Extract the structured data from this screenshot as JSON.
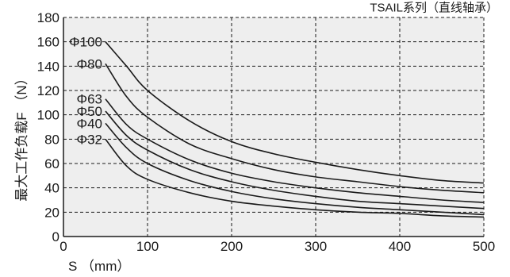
{
  "chart_data": {
    "type": "line",
    "title": "TSAIL系列（直线轴承）",
    "xlabel": "S （mm）",
    "ylabel": "最大工作负载F （N）",
    "xlim": [
      0,
      500
    ],
    "ylim": [
      0,
      180
    ],
    "x_ticks": [
      "0",
      "100",
      "200",
      "300",
      "400",
      "500"
    ],
    "y_ticks": [
      "0",
      "20",
      "40",
      "60",
      "80",
      "100",
      "120",
      "140",
      "160",
      "180"
    ],
    "grid": true,
    "grid_style": "dashed",
    "plot_background": "#eeeeee",
    "line_color": "#1a1a1a",
    "series": [
      {
        "name": "Φ100",
        "x": [
          50,
          75,
          100,
          150,
          200,
          250,
          300,
          350,
          400,
          450,
          500
        ],
        "y": [
          160,
          140,
          120,
          95,
          78,
          68,
          61,
          55,
          50,
          46,
          44
        ]
      },
      {
        "name": "Φ80",
        "x": [
          50,
          75,
          100,
          150,
          200,
          250,
          300,
          350,
          400,
          450,
          500
        ],
        "y": [
          142,
          115,
          98,
          76,
          64,
          55,
          49,
          45,
          41,
          38,
          36
        ]
      },
      {
        "name": "Φ63",
        "x": [
          50,
          75,
          100,
          150,
          200,
          250,
          300,
          350,
          400,
          450,
          500
        ],
        "y": [
          113,
          92,
          80,
          63,
          52,
          45,
          40,
          36,
          33,
          30,
          28
        ]
      },
      {
        "name": "Φ50",
        "x": [
          50,
          75,
          100,
          150,
          200,
          250,
          300,
          350,
          400,
          450,
          500
        ],
        "y": [
          103,
          83,
          71,
          55,
          45,
          38,
          33,
          29,
          27,
          25,
          23
        ]
      },
      {
        "name": "Φ40",
        "x": [
          50,
          75,
          100,
          150,
          200,
          250,
          300,
          350,
          400,
          450,
          500
        ],
        "y": [
          93,
          73,
          60,
          46,
          37,
          31,
          27,
          24,
          22,
          20,
          18
        ]
      },
      {
        "name": "Φ32",
        "x": [
          50,
          75,
          100,
          150,
          200,
          250,
          300,
          350,
          400,
          450,
          500
        ],
        "y": [
          80,
          58,
          47,
          36,
          29,
          25,
          22,
          20,
          19,
          17,
          16
        ]
      }
    ]
  }
}
